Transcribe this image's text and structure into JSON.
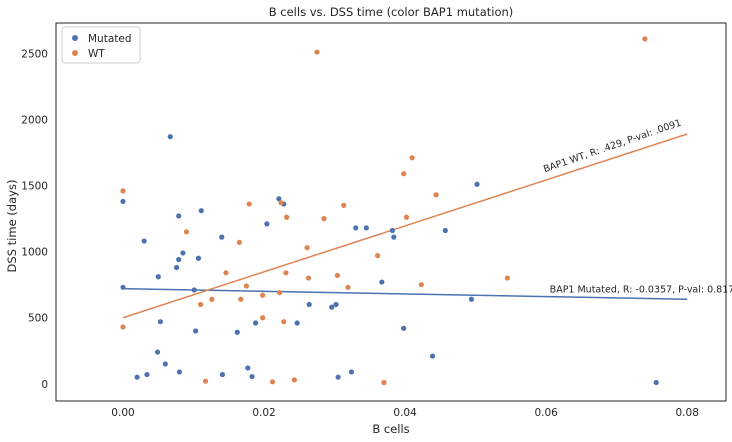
{
  "chart_data": {
    "type": "scatter",
    "title": "B cells vs. DSS time (color BAP1 mutation)",
    "xlabel": "B cells",
    "ylabel": "DSS time (days)",
    "xlim": [
      -0.0095,
      0.0855
    ],
    "ylim": [
      -130,
      2730
    ],
    "xticks": [
      0.0,
      0.02,
      0.04,
      0.06,
      0.08
    ],
    "xtick_labels": [
      "0.00",
      "0.02",
      "0.04",
      "0.06",
      "0.08"
    ],
    "yticks": [
      0,
      500,
      1000,
      1500,
      2000,
      2500
    ],
    "ytick_labels": [
      "0",
      "500",
      "1000",
      "1500",
      "2000",
      "2500"
    ],
    "grid": false,
    "legend_position": "top-left",
    "series": [
      {
        "name": "Mutated",
        "color": "#4c72b0",
        "points": [
          [
            0.0,
            1380
          ],
          [
            0.0,
            730
          ],
          [
            0.002,
            50
          ],
          [
            0.003,
            1080
          ],
          [
            0.0034,
            70
          ],
          [
            0.0049,
            240
          ],
          [
            0.005,
            810
          ],
          [
            0.0053,
            470
          ],
          [
            0.006,
            150
          ],
          [
            0.0067,
            1870
          ],
          [
            0.0076,
            880
          ],
          [
            0.0079,
            1270
          ],
          [
            0.0079,
            940
          ],
          [
            0.008,
            90
          ],
          [
            0.0085,
            990
          ],
          [
            0.0101,
            710
          ],
          [
            0.0103,
            400
          ],
          [
            0.0107,
            950
          ],
          [
            0.0111,
            1310
          ],
          [
            0.014,
            1110
          ],
          [
            0.0141,
            70
          ],
          [
            0.0162,
            390
          ],
          [
            0.0177,
            120
          ],
          [
            0.0183,
            55
          ],
          [
            0.0188,
            460
          ],
          [
            0.0204,
            1210
          ],
          [
            0.0221,
            1400
          ],
          [
            0.0228,
            1360
          ],
          [
            0.0247,
            460
          ],
          [
            0.0264,
            600
          ],
          [
            0.0296,
            580
          ],
          [
            0.0302,
            600
          ],
          [
            0.0305,
            50
          ],
          [
            0.0324,
            90
          ],
          [
            0.033,
            1180
          ],
          [
            0.0345,
            1180
          ],
          [
            0.0367,
            770
          ],
          [
            0.0382,
            1160
          ],
          [
            0.0384,
            1110
          ],
          [
            0.0398,
            420
          ],
          [
            0.0439,
            210
          ],
          [
            0.0457,
            1160
          ],
          [
            0.0494,
            640
          ],
          [
            0.0502,
            1510
          ],
          [
            0.0756,
            10
          ]
        ]
      },
      {
        "name": "WT",
        "color": "#dd8452",
        "points": [
          [
            0.0,
            1460
          ],
          [
            0.0,
            430
          ],
          [
            0.009,
            1150
          ],
          [
            0.011,
            600
          ],
          [
            0.0117,
            20
          ],
          [
            0.0126,
            640
          ],
          [
            0.0146,
            840
          ],
          [
            0.0167,
            640
          ],
          [
            0.0165,
            1070
          ],
          [
            0.0175,
            740
          ],
          [
            0.0179,
            1360
          ],
          [
            0.0198,
            500
          ],
          [
            0.0198,
            670
          ],
          [
            0.0212,
            15
          ],
          [
            0.0222,
            690
          ],
          [
            0.0224,
            1370
          ],
          [
            0.0228,
            470
          ],
          [
            0.0231,
            840
          ],
          [
            0.0232,
            1260
          ],
          [
            0.0243,
            30
          ],
          [
            0.0261,
            1030
          ],
          [
            0.0263,
            800
          ],
          [
            0.0275,
            2510
          ],
          [
            0.0285,
            1250
          ],
          [
            0.0304,
            820
          ],
          [
            0.0313,
            1350
          ],
          [
            0.0319,
            730
          ],
          [
            0.0361,
            970
          ],
          [
            0.037,
            10
          ],
          [
            0.0398,
            1590
          ],
          [
            0.0402,
            1260
          ],
          [
            0.041,
            1710
          ],
          [
            0.0423,
            750
          ],
          [
            0.0444,
            1430
          ],
          [
            0.0545,
            800
          ],
          [
            0.074,
            2610
          ]
        ]
      }
    ],
    "fit_lines": [
      {
        "series": "Mutated",
        "x": [
          0.0,
          0.08
        ],
        "y": [
          720,
          640
        ],
        "color": "#4c72b0"
      },
      {
        "series": "WT",
        "x": [
          0.0,
          0.08
        ],
        "y": [
          500,
          1890
        ],
        "color": "#dd8452"
      }
    ],
    "annotations": [
      {
        "text": "BAP1 Mutated, R: -0.0357, P-val: 0.817",
        "x": 0.0605,
        "y": 690,
        "rotation": 0
      },
      {
        "text": "BAP1 WT, R: .429, P-val: .0091",
        "x": 0.0598,
        "y": 1600,
        "rotation": -19
      }
    ]
  }
}
